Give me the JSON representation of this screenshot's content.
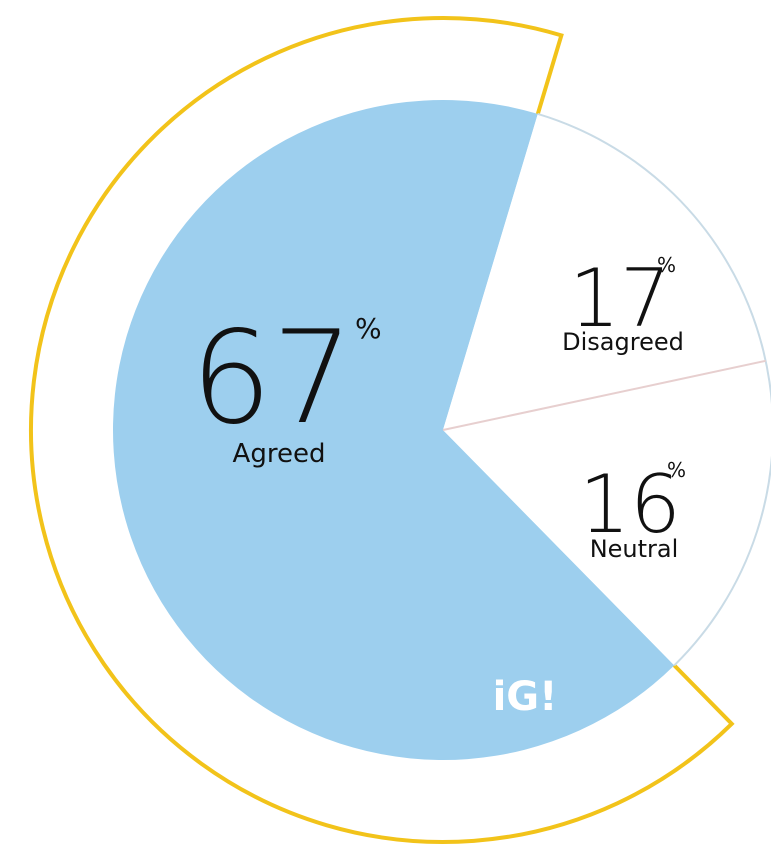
{
  "chart_data": {
    "type": "pie",
    "slices": [
      {
        "label": "Agreed",
        "value": 67,
        "display": "67",
        "unit": "%",
        "color": "#9dcfee"
      },
      {
        "label": "Disagreed",
        "value": 17,
        "display": "17",
        "unit": "%",
        "color": "#ffffff"
      },
      {
        "label": "Neutral",
        "value": 16,
        "display": "16",
        "unit": "%",
        "color": "#ffffff"
      }
    ],
    "ring_color": "#f2c31a",
    "divider_color": "#c9dbe6",
    "neutral_divider_color": "#e7cfcf"
  },
  "logo": {
    "icon": "ig-logo-icon",
    "text": "iG!"
  }
}
